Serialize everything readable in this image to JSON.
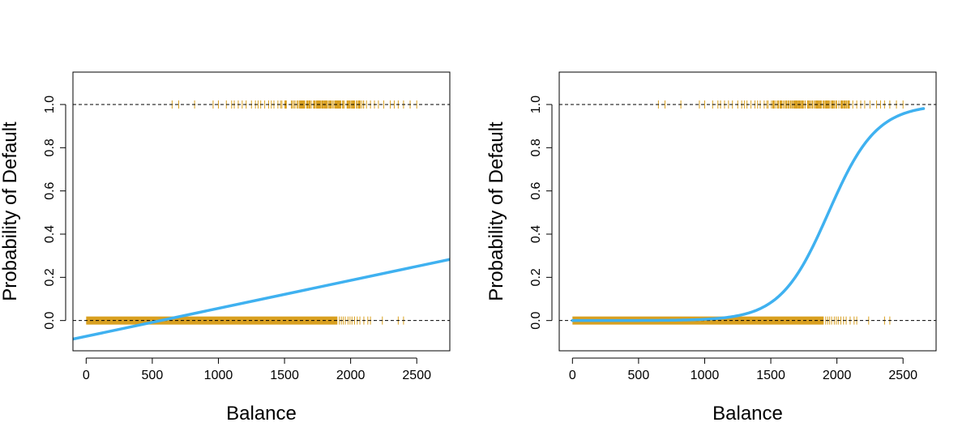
{
  "chart_data": [
    {
      "type": "line",
      "xlabel": "Balance",
      "ylabel": "Probability of Default",
      "xlim": [
        -100,
        2750
      ],
      "ylim": [
        -0.14,
        1.15
      ],
      "x_ticks": [
        0,
        500,
        1000,
        1500,
        2000,
        2500
      ],
      "x_tick_labels": [
        "0",
        "500",
        "1000",
        "1500",
        "2000",
        "2500"
      ],
      "y_ticks": [
        0.0,
        0.2,
        0.4,
        0.6,
        0.8,
        1.0
      ],
      "y_tick_labels": [
        "0.0",
        "0.2",
        "0.4",
        "0.6",
        "0.8",
        "1.0"
      ],
      "reference_lines": [
        0,
        1
      ],
      "grid": false,
      "fit": {
        "kind": "linear",
        "x": [
          -100,
          2750
        ],
        "y": [
          -0.086,
          0.283
        ],
        "color": "#3fb1f0"
      },
      "rug": {
        "color": "#d9a020",
        "dense_y0_range": [
          0,
          1900
        ],
        "sparse_y0": [
          1915,
          1930,
          1945,
          1960,
          1980,
          1995,
          2010,
          2030,
          2050,
          2070,
          2100,
          2130,
          2150,
          2240,
          2360,
          2400
        ],
        "dense_y1_range": [
          1500,
          2100
        ],
        "sparse_y1": [
          650,
          700,
          820,
          960,
          1000,
          1060,
          1100,
          1120,
          1150,
          1180,
          1210,
          1250,
          1280,
          1300,
          1320,
          1350,
          1380,
          1400,
          1420,
          1450,
          1470,
          1480,
          2120,
          2150,
          2180,
          2210,
          2250,
          2300,
          2330,
          2360,
          2400,
          2450,
          2500
        ]
      }
    },
    {
      "type": "line",
      "xlabel": "Balance",
      "ylabel": "Probability of Default",
      "xlim": [
        -100,
        2750
      ],
      "ylim": [
        -0.14,
        1.15
      ],
      "x_ticks": [
        0,
        500,
        1000,
        1500,
        2000,
        2500
      ],
      "x_tick_labels": [
        "0",
        "500",
        "1000",
        "1500",
        "2000",
        "2500"
      ],
      "y_ticks": [
        0.0,
        0.2,
        0.4,
        0.6,
        0.8,
        1.0
      ],
      "y_tick_labels": [
        "0.0",
        "0.2",
        "0.4",
        "0.6",
        "0.8",
        "1.0"
      ],
      "reference_lines": [
        0,
        1
      ],
      "grid": false,
      "fit": {
        "kind": "logistic",
        "x_range": [
          0,
          2655
        ],
        "intercept": -10.65,
        "slope": 0.0055,
        "color": "#3fb1f0"
      },
      "rug": {
        "color": "#d9a020",
        "dense_y0_range": [
          0,
          1900
        ],
        "sparse_y0": [
          1915,
          1930,
          1945,
          1960,
          1980,
          1995,
          2010,
          2030,
          2050,
          2070,
          2100,
          2130,
          2150,
          2240,
          2360,
          2400
        ],
        "dense_y1_range": [
          1500,
          2100
        ],
        "sparse_y1": [
          650,
          700,
          820,
          960,
          1000,
          1060,
          1100,
          1120,
          1150,
          1180,
          1210,
          1250,
          1280,
          1300,
          1320,
          1350,
          1380,
          1400,
          1420,
          1450,
          1470,
          1480,
          2120,
          2150,
          2180,
          2210,
          2250,
          2300,
          2330,
          2360,
          2400,
          2450,
          2500
        ]
      }
    }
  ]
}
